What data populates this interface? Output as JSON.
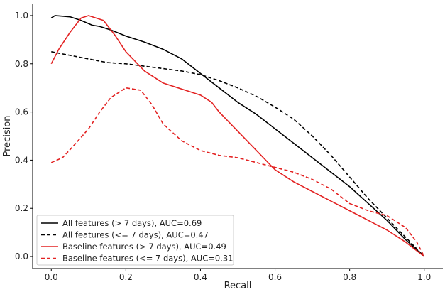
{
  "chart_data": {
    "type": "line",
    "xlabel": "Recall",
    "ylabel": "Precision",
    "xlim": [
      -0.05,
      1.05
    ],
    "ylim": [
      -0.05,
      1.05
    ],
    "xticks": [
      "0.0",
      "0.2",
      "0.4",
      "0.6",
      "0.8",
      "1.0"
    ],
    "yticks": [
      "0.0",
      "0.2",
      "0.4",
      "0.6",
      "0.8",
      "1.0"
    ],
    "grid": false,
    "legend_position": "bottom-left",
    "series": [
      {
        "name": "All features (> 7 days), AUC=0.69",
        "color": "#000000",
        "dash": "solid",
        "points": [
          [
            0.0,
            0.99
          ],
          [
            0.01,
            1.0
          ],
          [
            0.05,
            0.995
          ],
          [
            0.08,
            0.98
          ],
          [
            0.11,
            0.96
          ],
          [
            0.13,
            0.955
          ],
          [
            0.16,
            0.94
          ],
          [
            0.2,
            0.915
          ],
          [
            0.25,
            0.89
          ],
          [
            0.3,
            0.86
          ],
          [
            0.35,
            0.82
          ],
          [
            0.4,
            0.76
          ],
          [
            0.45,
            0.7
          ],
          [
            0.5,
            0.64
          ],
          [
            0.55,
            0.59
          ],
          [
            0.6,
            0.53
          ],
          [
            0.65,
            0.47
          ],
          [
            0.7,
            0.41
          ],
          [
            0.75,
            0.35
          ],
          [
            0.8,
            0.29
          ],
          [
            0.85,
            0.22
          ],
          [
            0.9,
            0.15
          ],
          [
            0.95,
            0.07
          ],
          [
            1.0,
            0.0
          ]
        ]
      },
      {
        "name": "All features (<= 7 days), AUC=0.47",
        "color": "#000000",
        "dash": "dashed",
        "points": [
          [
            0.0,
            0.85
          ],
          [
            0.05,
            0.835
          ],
          [
            0.1,
            0.82
          ],
          [
            0.15,
            0.805
          ],
          [
            0.2,
            0.8
          ],
          [
            0.25,
            0.79
          ],
          [
            0.3,
            0.78
          ],
          [
            0.35,
            0.77
          ],
          [
            0.4,
            0.755
          ],
          [
            0.45,
            0.73
          ],
          [
            0.5,
            0.7
          ],
          [
            0.55,
            0.665
          ],
          [
            0.6,
            0.62
          ],
          [
            0.65,
            0.57
          ],
          [
            0.7,
            0.5
          ],
          [
            0.75,
            0.42
          ],
          [
            0.8,
            0.33
          ],
          [
            0.85,
            0.24
          ],
          [
            0.9,
            0.16
          ],
          [
            0.95,
            0.08
          ],
          [
            1.0,
            0.0
          ]
        ]
      },
      {
        "name": "Baseline features (> 7 days), AUC=0.49",
        "color": "#e32222",
        "dash": "solid",
        "points": [
          [
            0.0,
            0.8
          ],
          [
            0.02,
            0.86
          ],
          [
            0.05,
            0.93
          ],
          [
            0.08,
            0.99
          ],
          [
            0.1,
            1.0
          ],
          [
            0.12,
            0.99
          ],
          [
            0.14,
            0.98
          ],
          [
            0.17,
            0.92
          ],
          [
            0.2,
            0.85
          ],
          [
            0.25,
            0.77
          ],
          [
            0.3,
            0.72
          ],
          [
            0.35,
            0.695
          ],
          [
            0.4,
            0.67
          ],
          [
            0.43,
            0.64
          ],
          [
            0.45,
            0.6
          ],
          [
            0.5,
            0.52
          ],
          [
            0.55,
            0.44
          ],
          [
            0.6,
            0.36
          ],
          [
            0.65,
            0.31
          ],
          [
            0.7,
            0.27
          ],
          [
            0.75,
            0.23
          ],
          [
            0.8,
            0.19
          ],
          [
            0.85,
            0.15
          ],
          [
            0.9,
            0.11
          ],
          [
            0.95,
            0.06
          ],
          [
            1.0,
            0.0
          ]
        ]
      },
      {
        "name": "Baseline features (<= 7 days), AUC=0.31",
        "color": "#e32222",
        "dash": "dashed",
        "points": [
          [
            0.0,
            0.39
          ],
          [
            0.03,
            0.41
          ],
          [
            0.06,
            0.46
          ],
          [
            0.1,
            0.53
          ],
          [
            0.13,
            0.6
          ],
          [
            0.16,
            0.66
          ],
          [
            0.2,
            0.7
          ],
          [
            0.24,
            0.69
          ],
          [
            0.27,
            0.63
          ],
          [
            0.3,
            0.55
          ],
          [
            0.35,
            0.48
          ],
          [
            0.4,
            0.44
          ],
          [
            0.45,
            0.42
          ],
          [
            0.5,
            0.41
          ],
          [
            0.55,
            0.39
          ],
          [
            0.6,
            0.37
          ],
          [
            0.65,
            0.35
          ],
          [
            0.7,
            0.32
          ],
          [
            0.75,
            0.28
          ],
          [
            0.8,
            0.22
          ],
          [
            0.85,
            0.19
          ],
          [
            0.9,
            0.17
          ],
          [
            0.95,
            0.12
          ],
          [
            0.98,
            0.06
          ],
          [
            1.0,
            0.0
          ]
        ]
      }
    ]
  }
}
